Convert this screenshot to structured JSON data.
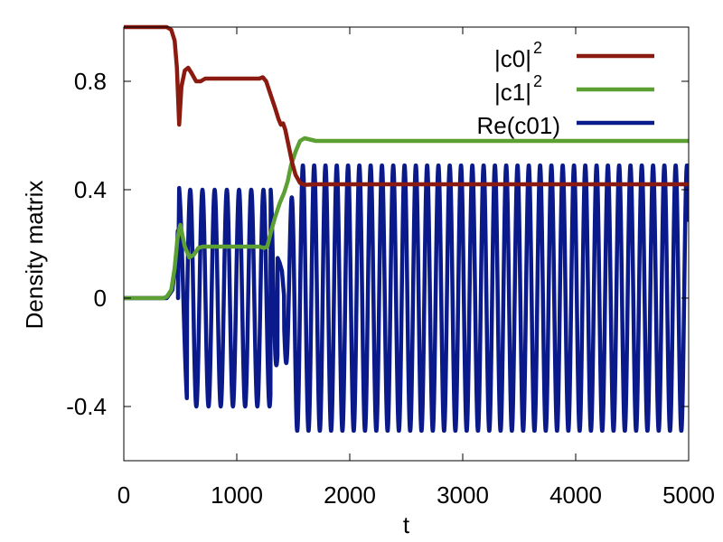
{
  "chart_data": {
    "type": "line",
    "title": "",
    "xlabel": "t",
    "ylabel": "Density matrix",
    "xlim": [
      0,
      5000
    ],
    "ylim": [
      -0.6,
      1.0
    ],
    "x_ticks": [
      {
        "value": 0,
        "label": "0"
      },
      {
        "value": 1000,
        "label": "1000"
      },
      {
        "value": 2000,
        "label": "2000"
      },
      {
        "value": 3000,
        "label": "3000"
      },
      {
        "value": 4000,
        "label": "4000"
      },
      {
        "value": 5000,
        "label": "5000"
      }
    ],
    "y_ticks": [
      {
        "value": 0.8,
        "label": "0.8"
      },
      {
        "value": 0.4,
        "label": "0.4"
      },
      {
        "value": 0,
        "label": "0"
      },
      {
        "value": -0.4,
        "label": "-0.4"
      }
    ],
    "grid": false,
    "legend_position": "top-right",
    "series": [
      {
        "name_base": "|c0|",
        "name_sup": "2",
        "color": "#8b1a10",
        "points": [
          [
            0,
            1.0
          ],
          [
            380,
            1.0
          ],
          [
            420,
            0.99
          ],
          [
            450,
            0.95
          ],
          [
            470,
            0.85
          ],
          [
            490,
            0.64
          ],
          [
            510,
            0.78
          ],
          [
            540,
            0.84
          ],
          [
            570,
            0.85
          ],
          [
            600,
            0.83
          ],
          [
            640,
            0.8
          ],
          [
            680,
            0.8
          ],
          [
            720,
            0.81
          ],
          [
            800,
            0.81
          ],
          [
            1000,
            0.81
          ],
          [
            1200,
            0.81
          ],
          [
            1230,
            0.815
          ],
          [
            1260,
            0.8
          ],
          [
            1300,
            0.75
          ],
          [
            1340,
            0.7
          ],
          [
            1370,
            0.66
          ],
          [
            1390,
            0.64
          ],
          [
            1410,
            0.645
          ],
          [
            1430,
            0.62
          ],
          [
            1460,
            0.56
          ],
          [
            1490,
            0.5
          ],
          [
            1520,
            0.455
          ],
          [
            1560,
            0.425
          ],
          [
            1600,
            0.418
          ],
          [
            1700,
            0.42
          ],
          [
            2000,
            0.42
          ],
          [
            3000,
            0.42
          ],
          [
            4000,
            0.42
          ],
          [
            5000,
            0.42
          ]
        ]
      },
      {
        "name_base": "|c1|",
        "name_sup": "2",
        "color": "#5c9f33",
        "points": [
          [
            0,
            0.0
          ],
          [
            350,
            0.0
          ],
          [
            380,
            0.005
          ],
          [
            420,
            0.03
          ],
          [
            450,
            0.11
          ],
          [
            475,
            0.22
          ],
          [
            500,
            0.27
          ],
          [
            540,
            0.19
          ],
          [
            580,
            0.15
          ],
          [
            620,
            0.16
          ],
          [
            660,
            0.185
          ],
          [
            700,
            0.19
          ],
          [
            800,
            0.19
          ],
          [
            1000,
            0.19
          ],
          [
            1200,
            0.19
          ],
          [
            1240,
            0.185
          ],
          [
            1270,
            0.19
          ],
          [
            1300,
            0.24
          ],
          [
            1340,
            0.3
          ],
          [
            1380,
            0.35
          ],
          [
            1420,
            0.39
          ],
          [
            1450,
            0.43
          ],
          [
            1480,
            0.49
          ],
          [
            1520,
            0.54
          ],
          [
            1560,
            0.58
          ],
          [
            1600,
            0.59
          ],
          [
            1650,
            0.585
          ],
          [
            1700,
            0.58
          ],
          [
            2000,
            0.58
          ],
          [
            3000,
            0.58
          ],
          [
            4000,
            0.58
          ],
          [
            5000,
            0.58
          ]
        ]
      },
      {
        "name_base": "Re(c01)",
        "name_sup": "",
        "color": "#0a1a8a",
        "oscillation": {
          "baseline": [
            [
              0,
              0
            ],
            [
              380,
              0
            ],
            [
              430,
              0.03
            ],
            [
              470,
              0.18
            ],
            [
              490,
              0.35
            ],
            [
              510,
              0.0
            ],
            [
              1200,
              0.0
            ],
            [
              1500,
              0.0
            ],
            [
              5000,
              0.0
            ]
          ],
          "segments": [
            {
              "t_start": 480,
              "t_end": 1300,
              "period": 108,
              "amplitude": 0.4,
              "phase_t": 480
            },
            {
              "t_start": 1300,
              "t_end": 1420,
              "shape": "transition"
            },
            {
              "t_start": 1420,
              "t_end": 5000,
              "period": 100,
              "amplitude": 0.49,
              "phase_t": 1535
            }
          ]
        }
      }
    ]
  }
}
